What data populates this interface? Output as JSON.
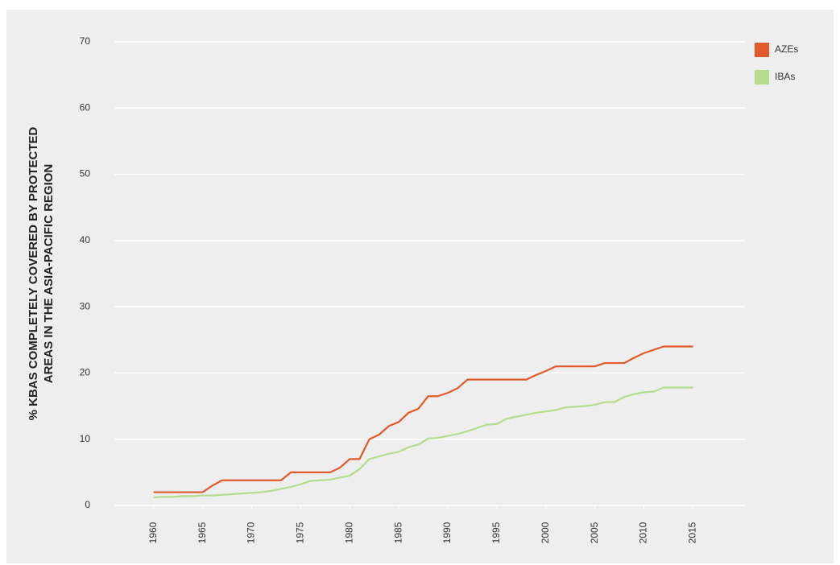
{
  "chart_data": {
    "type": "line",
    "ylabel": [
      "% KBAS COMPLETELY COVERED BY PROTECTED",
      "AREAS IN THE ASIA-PACIFIC REGION"
    ],
    "x": [
      1960,
      1961,
      1962,
      1963,
      1964,
      1965,
      1966,
      1967,
      1968,
      1969,
      1970,
      1971,
      1972,
      1973,
      1974,
      1975,
      1976,
      1977,
      1978,
      1979,
      1980,
      1981,
      1982,
      1983,
      1984,
      1985,
      1986,
      1987,
      1988,
      1989,
      1990,
      1991,
      1992,
      1993,
      1994,
      1995,
      1996,
      1997,
      1998,
      1999,
      2000,
      2001,
      2002,
      2003,
      2004,
      2005,
      2006,
      2007,
      2008,
      2009,
      2010,
      2011,
      2012,
      2013,
      2014,
      2015
    ],
    "series": [
      {
        "name": "AZEs",
        "color": "#e05a2b",
        "values": [
          2,
          2,
          2,
          2,
          2,
          2,
          3,
          3.8,
          3.8,
          3.8,
          3.8,
          3.8,
          3.8,
          3.8,
          5,
          5,
          5,
          5,
          5,
          5.7,
          7,
          7,
          10,
          10.7,
          12,
          12.6,
          14,
          14.6,
          16.5,
          16.5,
          17,
          17.7,
          19,
          19,
          19,
          19,
          19,
          19,
          19,
          19.7,
          20.3,
          21,
          21,
          21,
          21,
          21,
          21.5,
          21.5,
          21.5,
          22.3,
          23,
          23.5,
          24,
          24,
          24,
          24
        ]
      },
      {
        "name": "IBAs",
        "color": "#b5dc8c",
        "values": [
          1.2,
          1.3,
          1.3,
          1.4,
          1.4,
          1.5,
          1.5,
          1.6,
          1.7,
          1.8,
          1.9,
          2,
          2.2,
          2.5,
          2.8,
          3.2,
          3.7,
          3.8,
          3.9,
          4.2,
          4.5,
          5.5,
          7,
          7.4,
          7.8,
          8.1,
          8.8,
          9.2,
          10.1,
          10.2,
          10.5,
          10.8,
          11.2,
          11.7,
          12.2,
          12.3,
          13.1,
          13.4,
          13.7,
          14,
          14.2,
          14.4,
          14.8,
          14.9,
          15,
          15.2,
          15.6,
          15.6,
          16.4,
          16.8,
          17.1,
          17.2,
          17.8,
          17.8,
          17.8,
          17.8
        ]
      }
    ],
    "xlim": [
      1956,
      2020.3
    ],
    "xticks": [
      1960,
      1965,
      1970,
      1975,
      1980,
      1985,
      1990,
      1995,
      2000,
      2005,
      2010,
      2015
    ],
    "ylim": [
      0,
      70
    ],
    "yticks": [
      0,
      10,
      20,
      30,
      40,
      50,
      60,
      70
    ],
    "grid": true,
    "legend": "top-right"
  }
}
